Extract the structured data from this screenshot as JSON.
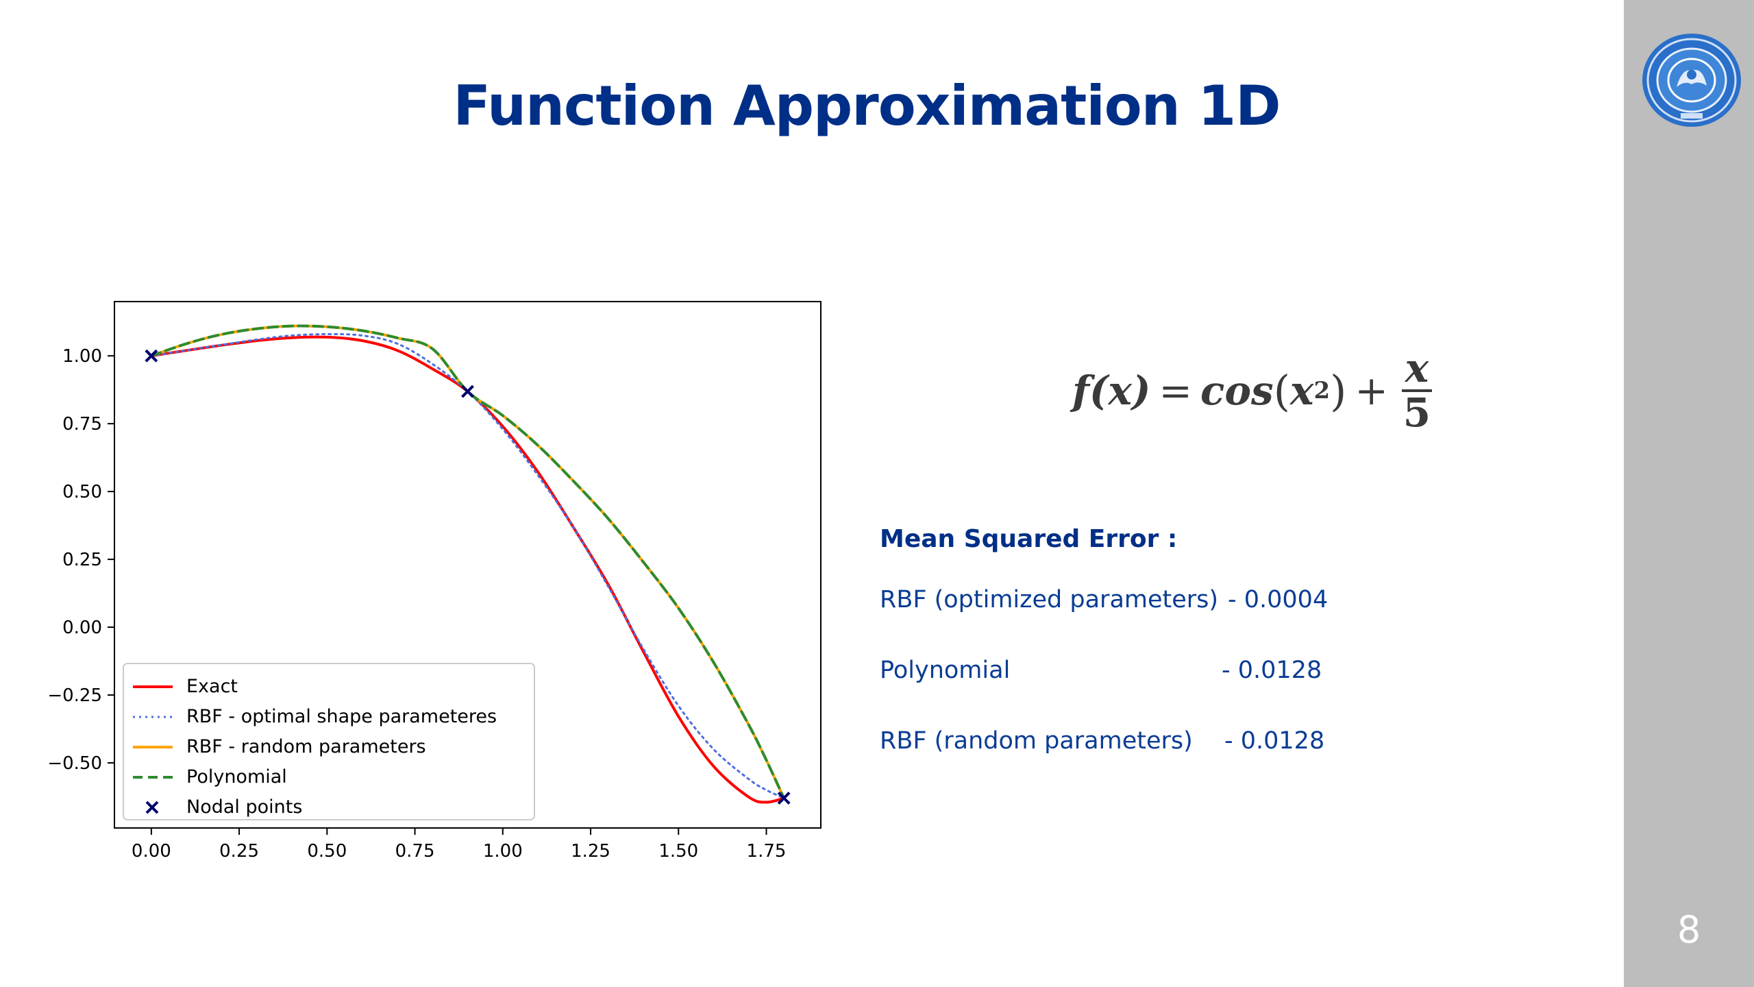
{
  "slide": {
    "title": "Function Approximation 1D",
    "page_number": "8",
    "logo_icon": "university-seal-icon"
  },
  "formula": {
    "lhs": "f(x)",
    "equals": "=",
    "func": "cos",
    "arg_base": "x",
    "arg_exp": "2",
    "plus": "+",
    "frac_num": "x",
    "frac_den": "5"
  },
  "mse": {
    "heading": "Mean Squared Error :",
    "rows": [
      {
        "label": "RBF (optimized parameters)",
        "value": "- 0.0004"
      },
      {
        "label": "Polynomial",
        "value": "- 0.0128"
      },
      {
        "label": "RBF (random parameters)",
        "value": "- 0.0128"
      }
    ]
  },
  "chart_data": {
    "type": "line",
    "title": "",
    "xlabel": "",
    "ylabel": "",
    "xlim": [
      -0.105,
      1.905
    ],
    "ylim": [
      -0.74,
      1.2
    ],
    "x_ticks": [
      "0.00",
      "0.25",
      "0.50",
      "0.75",
      "1.00",
      "1.25",
      "1.50",
      "1.75"
    ],
    "y_ticks": [
      "1.00",
      "0.75",
      "0.50",
      "0.25",
      "0.00",
      "−0.25",
      "−0.50"
    ],
    "grid": false,
    "legend_position": "bottom-left",
    "series": [
      {
        "name": "Exact",
        "color": "#ff0000",
        "style": "solid",
        "x": [
          0,
          0.1,
          0.2,
          0.3,
          0.4,
          0.5,
          0.6,
          0.7,
          0.8,
          0.9,
          1.0,
          1.1,
          1.2,
          1.3,
          1.4,
          1.5,
          1.6,
          1.7,
          1.75,
          1.8
        ],
        "y": [
          1.0,
          1.02,
          1.039,
          1.056,
          1.067,
          1.069,
          1.056,
          1.02,
          0.952,
          0.869,
          0.74,
          0.572,
          0.37,
          0.157,
          -0.09,
          -0.329,
          -0.513,
          -0.626,
          -0.645,
          -0.63
        ]
      },
      {
        "name": "RBF - optimal shape parameteres",
        "color": "#4c6fe0",
        "style": "dotted",
        "x": [
          0,
          0.1,
          0.2,
          0.3,
          0.4,
          0.5,
          0.6,
          0.7,
          0.8,
          0.9,
          1.0,
          1.1,
          1.2,
          1.3,
          1.4,
          1.5,
          1.6,
          1.7,
          1.75,
          1.8
        ],
        "y": [
          1.0,
          1.02,
          1.04,
          1.06,
          1.075,
          1.08,
          1.075,
          1.045,
          0.97,
          0.869,
          0.73,
          0.56,
          0.37,
          0.15,
          -0.08,
          -0.29,
          -0.45,
          -0.56,
          -0.6,
          -0.63
        ]
      },
      {
        "name": "RBF - random parameters",
        "color": "#ffa500",
        "style": "solid",
        "x": [
          0,
          0.1,
          0.2,
          0.3,
          0.4,
          0.5,
          0.6,
          0.7,
          0.8,
          0.9,
          1.0,
          1.1,
          1.2,
          1.3,
          1.4,
          1.5,
          1.6,
          1.7,
          1.75,
          1.8
        ],
        "y": [
          1.0,
          1.045,
          1.079,
          1.1,
          1.11,
          1.107,
          1.093,
          1.066,
          1.026,
          0.869,
          0.78,
          0.67,
          0.54,
          0.4,
          0.24,
          0.07,
          -0.13,
          -0.36,
          -0.49,
          -0.63
        ]
      },
      {
        "name": "Polynomial",
        "color": "#2e8b2e",
        "style": "dashed",
        "x": [
          0,
          0.1,
          0.2,
          0.3,
          0.4,
          0.5,
          0.6,
          0.7,
          0.8,
          0.9,
          1.0,
          1.1,
          1.2,
          1.3,
          1.4,
          1.5,
          1.6,
          1.7,
          1.75,
          1.8
        ],
        "y": [
          1.0,
          1.045,
          1.079,
          1.1,
          1.11,
          1.107,
          1.093,
          1.066,
          1.026,
          0.869,
          0.78,
          0.67,
          0.54,
          0.4,
          0.24,
          0.07,
          -0.13,
          -0.36,
          -0.49,
          -0.63
        ]
      }
    ],
    "points": {
      "name": "Nodal points",
      "color": "#00006e",
      "marker": "x",
      "x": [
        0.0,
        0.9,
        1.8
      ],
      "y": [
        1.0,
        0.869,
        -0.63
      ]
    }
  }
}
